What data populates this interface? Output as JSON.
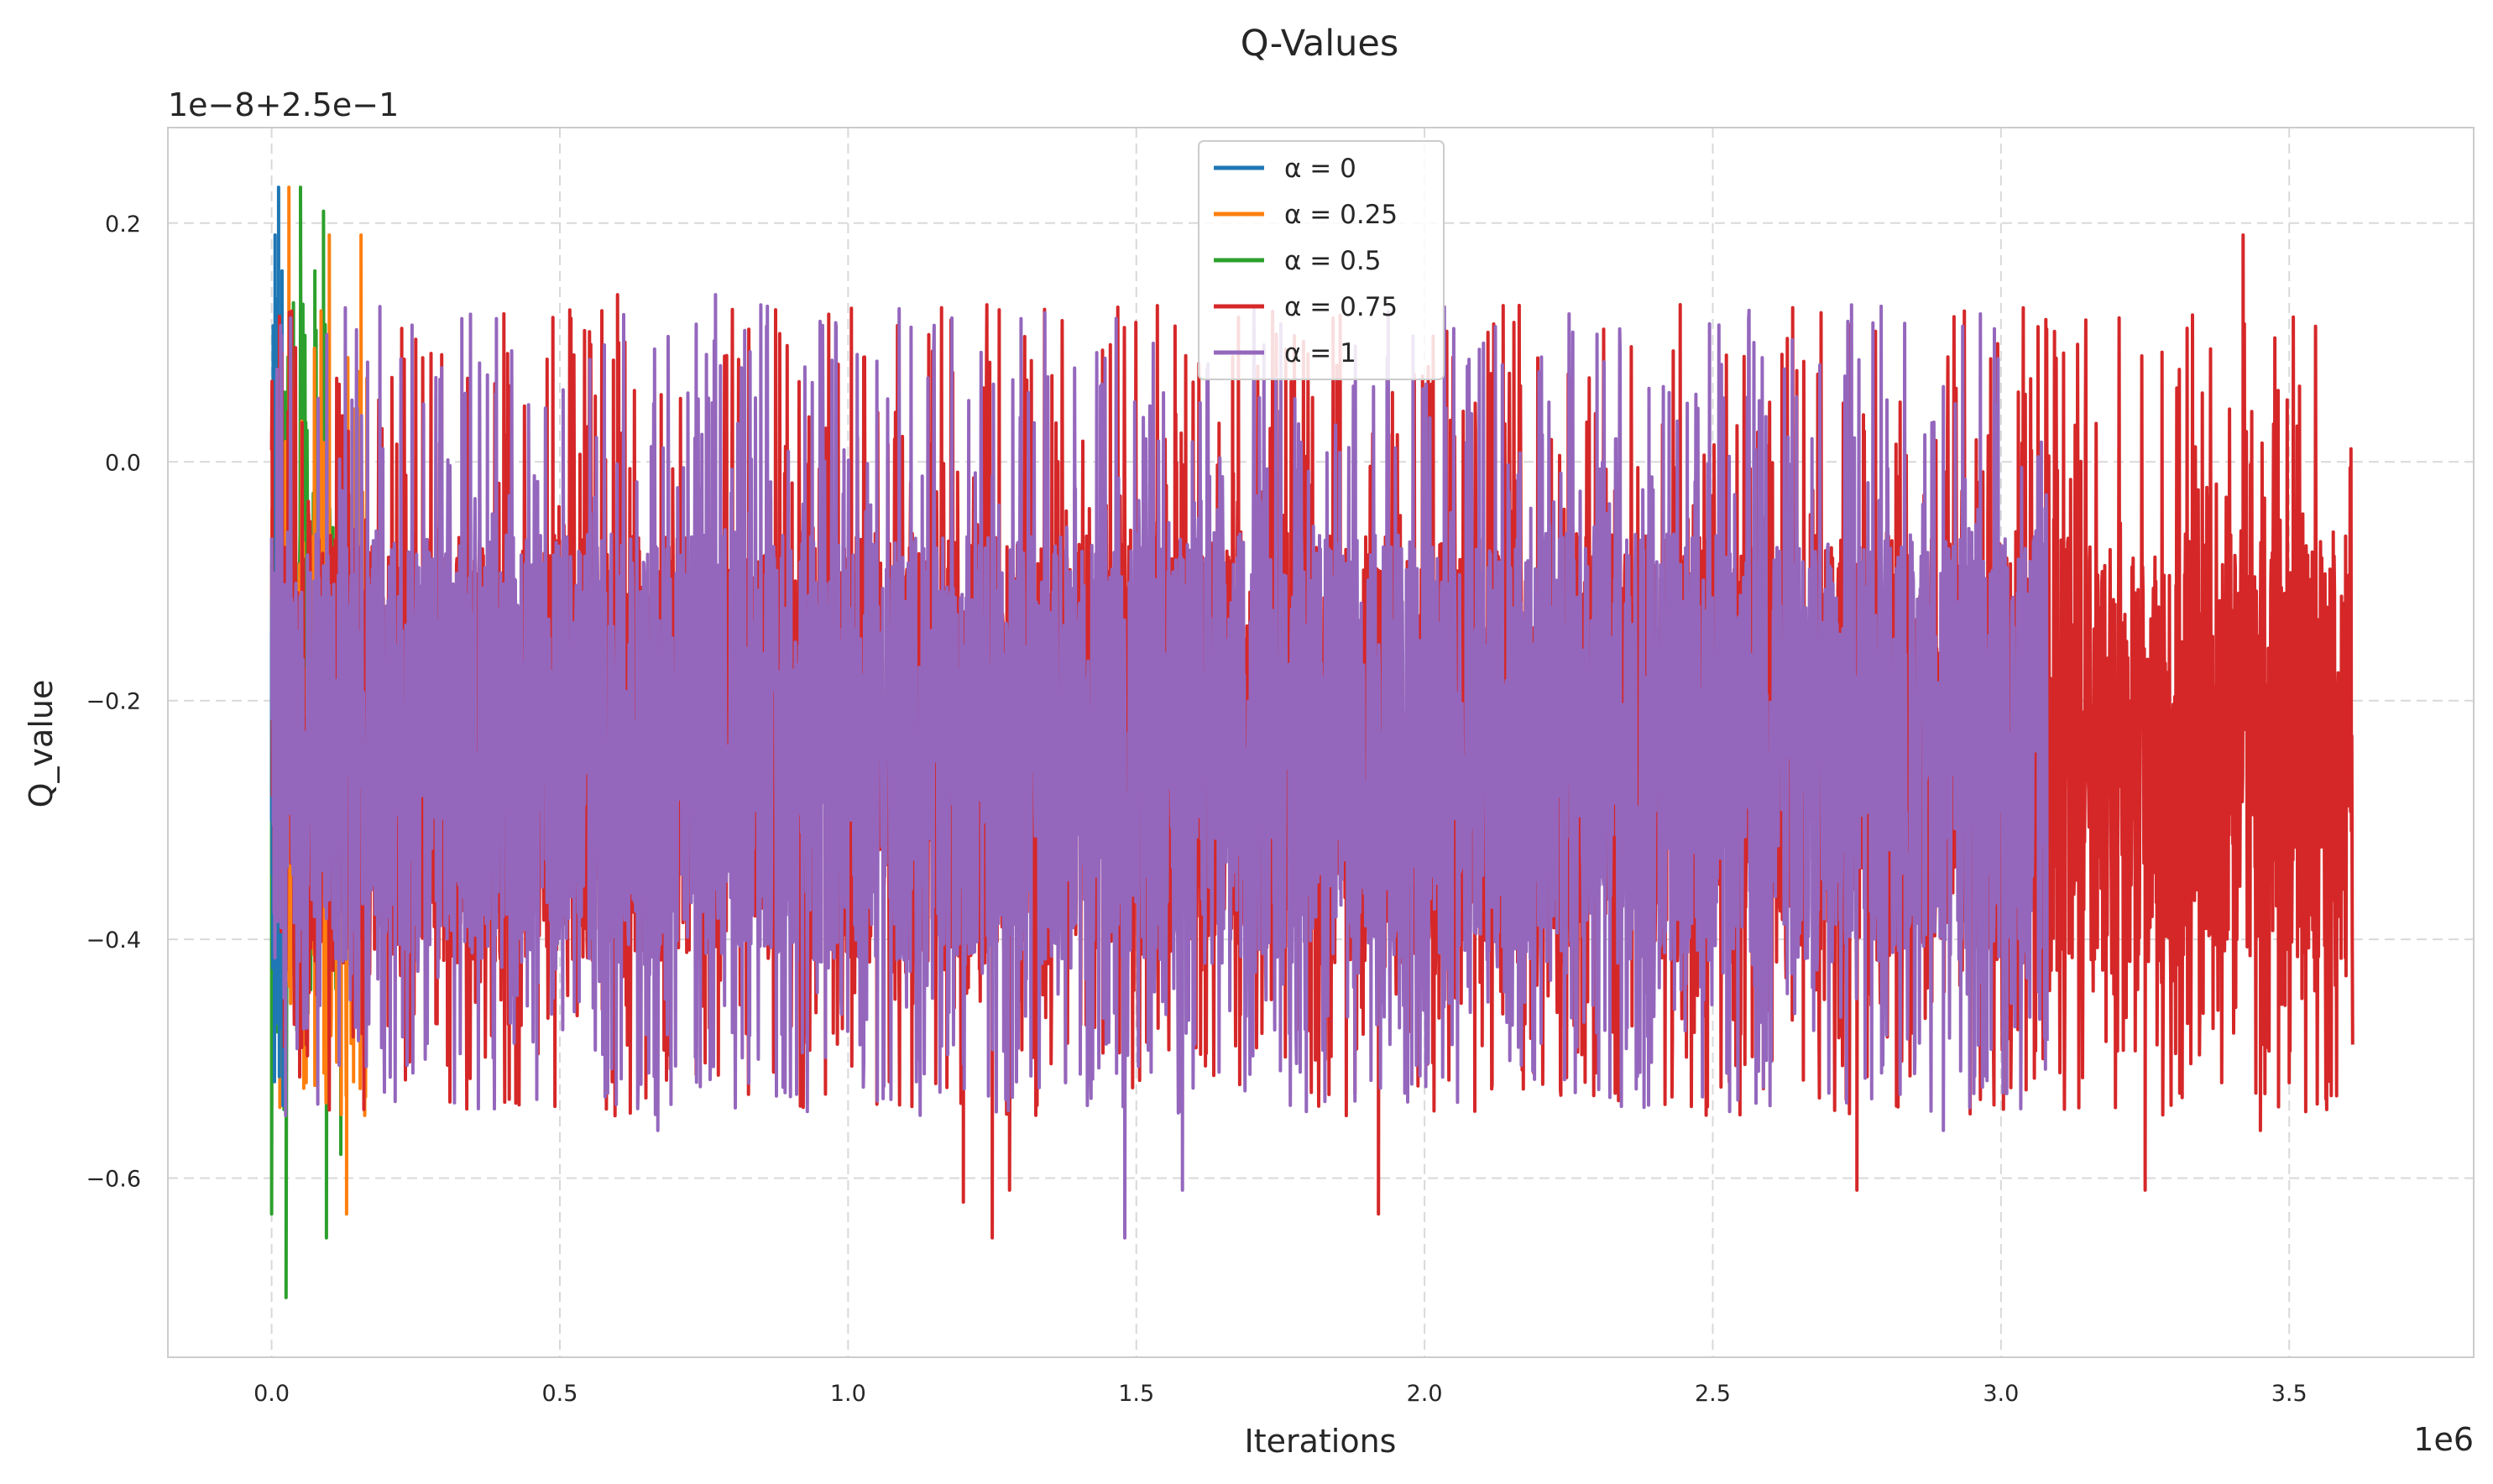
{
  "chart_data": {
    "type": "line",
    "title": "Q-Values",
    "xlabel": "Iterations",
    "ylabel": "Q_value",
    "x_offset_text": "1e6",
    "y_offset_text": "1e−8+2.5e−1",
    "xlim": [
      -0.18,
      3.82
    ],
    "ylim": [
      -0.75,
      0.28
    ],
    "x_ticks": [
      0.0,
      0.5,
      1.0,
      1.5,
      2.0,
      2.5,
      3.0,
      3.5
    ],
    "x_tick_labels": [
      "0.0",
      "0.5",
      "1.0",
      "1.5",
      "2.0",
      "2.5",
      "3.0",
      "3.5"
    ],
    "y_ticks": [
      0.2,
      0.0,
      -0.2,
      -0.4,
      -0.6
    ],
    "y_tick_labels": [
      "0.2",
      "0.0",
      "−0.2",
      "−0.4",
      "−0.6"
    ],
    "grid": true,
    "legend_position": "top-center",
    "series": [
      {
        "name": "α = 0",
        "color": "#1f77b4",
        "x_end": 0.02,
        "band_min": -0.45,
        "band_max": -0.02,
        "spikes": [
          [
            0.0,
            -0.3
          ],
          [
            0.003,
            0.09
          ],
          [
            0.006,
            0.19
          ],
          [
            0.009,
            -0.47
          ],
          [
            0.012,
            0.23
          ],
          [
            0.015,
            -0.4
          ],
          [
            0.018,
            0.16
          ]
        ]
      },
      {
        "name": "α = 0.25",
        "color": "#ff7f0e",
        "x_end": 0.17,
        "band_min": -0.45,
        "band_max": -0.02,
        "spikes": [
          [
            0.03,
            0.23
          ],
          [
            0.06,
            -0.52
          ],
          [
            0.1,
            0.19
          ],
          [
            0.13,
            -0.63
          ],
          [
            0.155,
            0.19
          ],
          [
            0.165,
            0.07
          ]
        ]
      },
      {
        "name": "α = 0.5",
        "color": "#2ca02c",
        "x_end": 0.13,
        "band_min": -0.45,
        "band_max": -0.02,
        "spikes": [
          [
            0.0,
            -0.63
          ],
          [
            0.025,
            -0.7
          ],
          [
            0.05,
            0.23
          ],
          [
            0.075,
            0.16
          ],
          [
            0.09,
            0.21
          ],
          [
            0.095,
            -0.65
          ],
          [
            0.12,
            -0.58
          ]
        ]
      },
      {
        "name": "α = 0.75",
        "color": "#d62728",
        "x_end": 3.61,
        "band_min": -0.42,
        "band_max": -0.06,
        "spikes": [
          [
            0.6,
            0.14
          ],
          [
            1.2,
            -0.62
          ],
          [
            1.25,
            -0.65
          ],
          [
            1.28,
            -0.61
          ],
          [
            1.92,
            -0.63
          ],
          [
            2.62,
            0.09
          ],
          [
            2.75,
            -0.61
          ],
          [
            3.25,
            -0.61
          ],
          [
            3.42,
            0.19
          ],
          [
            3.45,
            -0.56
          ],
          [
            3.5,
            -0.52
          ]
        ]
      },
      {
        "name": "α = 1",
        "color": "#9467bd",
        "x_end": 3.08,
        "band_min": -0.42,
        "band_max": -0.06,
        "spikes": [
          [
            0.33,
            0.12
          ],
          [
            0.39,
            0.12
          ],
          [
            0.67,
            -0.56
          ],
          [
            0.77,
            0.14
          ],
          [
            1.3,
            0.12
          ],
          [
            1.48,
            -0.65
          ],
          [
            1.58,
            -0.61
          ],
          [
            1.75,
            -0.51
          ],
          [
            2.6,
            -0.48
          ],
          [
            2.9,
            -0.56
          ]
        ]
      }
    ]
  }
}
